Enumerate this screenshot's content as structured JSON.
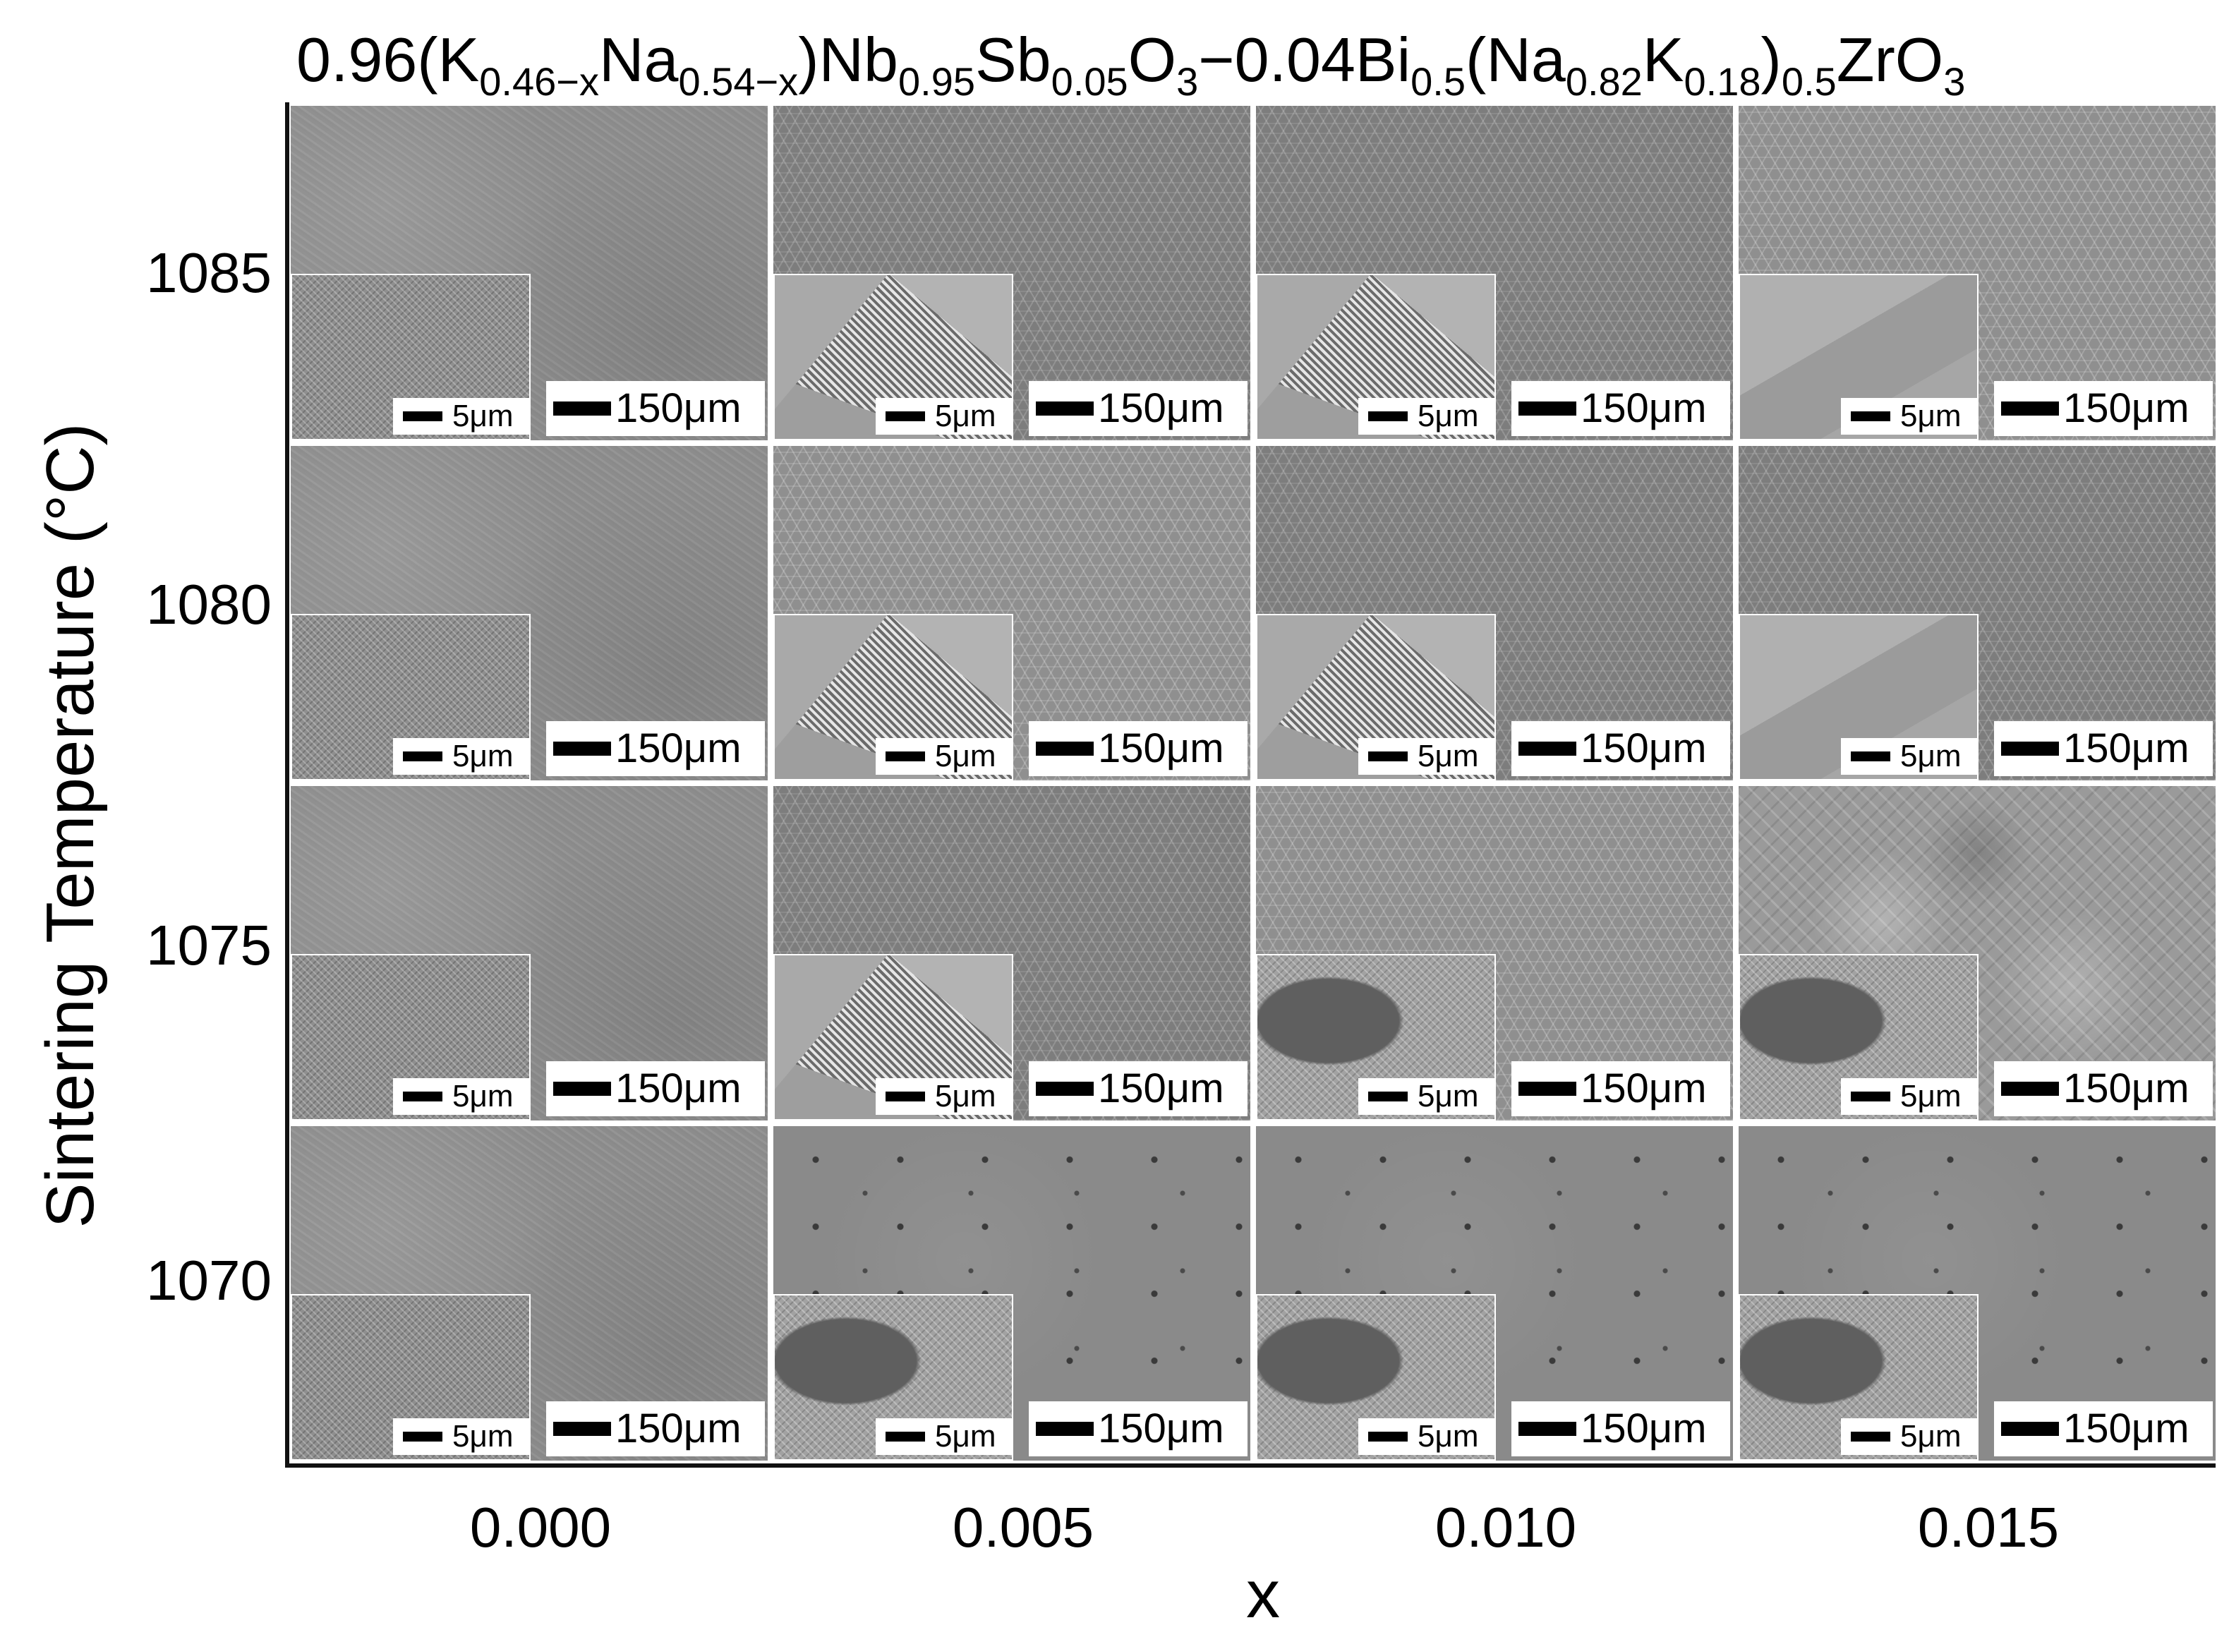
{
  "title": {
    "parts": [
      {
        "t": "0.96(K",
        "s": ""
      },
      {
        "t": "0.46−x",
        "s": "sub"
      },
      {
        "t": "Na",
        "s": ""
      },
      {
        "t": "0.54−x",
        "s": "sub"
      },
      {
        "t": ")Nb",
        "s": ""
      },
      {
        "t": "0.95",
        "s": "sub"
      },
      {
        "t": "Sb",
        "s": ""
      },
      {
        "t": "0.05",
        "s": "sub"
      },
      {
        "t": "O",
        "s": ""
      },
      {
        "t": "3",
        "s": "sub"
      },
      {
        "t": "−0.04Bi",
        "s": ""
      },
      {
        "t": "0.5",
        "s": "sub"
      },
      {
        "t": "(Na",
        "s": ""
      },
      {
        "t": "0.82",
        "s": "sub"
      },
      {
        "t": "K",
        "s": ""
      },
      {
        "t": "0.18",
        "s": "sub"
      },
      {
        "t": ")",
        "s": ""
      },
      {
        "t": "0.5",
        "s": "sub"
      },
      {
        "t": "ZrO",
        "s": ""
      },
      {
        "t": "3",
        "s": "sub"
      }
    ]
  },
  "y_axis": {
    "label": "Sintering Temperature (°C)",
    "ticks": [
      "1085",
      "1080",
      "1075",
      "1070"
    ]
  },
  "x_axis": {
    "label": "x",
    "ticks": [
      "0.000",
      "0.005",
      "0.010",
      "0.015"
    ]
  },
  "scale_bars": {
    "main": "150μm",
    "inset": "5μm"
  }
}
